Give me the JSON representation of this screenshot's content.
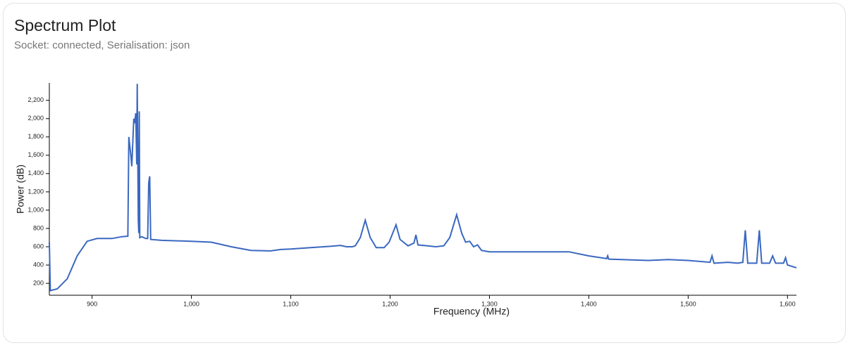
{
  "header": {
    "title": "Spectrum Plot",
    "subtitle": "Socket: connected, Serialisation: json"
  },
  "chart_data": {
    "type": "line",
    "x_label": "Frequency (MHz)",
    "y_label": "Power (dB)",
    "xlim": [
      857,
      1609
    ],
    "ylim": [
      70,
      2390
    ],
    "xticks": [
      900,
      {
        "value": 1000,
        "label": "1,000"
      },
      {
        "value": 1100,
        "label": "1,100"
      },
      {
        "value": 1200,
        "label": "1,200"
      },
      {
        "value": 1300,
        "label": "1,300"
      },
      {
        "value": 1400,
        "label": "1,400"
      },
      {
        "value": 1500,
        "label": "1,500"
      },
      {
        "value": 1600,
        "label": "1,600"
      }
    ],
    "yticks": [
      200,
      400,
      600,
      800,
      {
        "value": 1000,
        "label": "1,000"
      },
      {
        "value": 1200,
        "label": "1,200"
      },
      {
        "value": 1400,
        "label": "1,400"
      },
      {
        "value": 1600,
        "label": "1,600"
      },
      {
        "value": 1800,
        "label": "1,800"
      },
      {
        "value": 2000,
        "label": "2,000"
      },
      {
        "value": 2200,
        "label": "2,200"
      }
    ],
    "grid": false,
    "series": [
      {
        "name": "Power",
        "color": "#3a68c0",
        "x": [
          857,
          858,
          865,
          875,
          885,
          895,
          905,
          920,
          930,
          936,
          937,
          939,
          940,
          942,
          943,
          944,
          945,
          945.5,
          946.5,
          947,
          947.5,
          948,
          950,
          954,
          956,
          957,
          958,
          959,
          970,
          1000,
          1020,
          1040,
          1060,
          1080,
          1090,
          1100,
          1120,
          1140,
          1150,
          1156,
          1162,
          1165,
          1170,
          1175,
          1180,
          1186,
          1194,
          1199,
          1206,
          1210,
          1218,
          1224,
          1226,
          1228,
          1238,
          1246,
          1254,
          1260,
          1267,
          1272,
          1276,
          1280,
          1284,
          1288,
          1292,
          1300,
          1350,
          1380,
          1400,
          1418,
          1419,
          1420,
          1460,
          1480,
          1500,
          1522,
          1524,
          1526,
          1540,
          1550,
          1555,
          1557.5,
          1560,
          1569,
          1571.6,
          1574,
          1582,
          1585,
          1588,
          1596,
          1598,
          1600,
          1609
        ],
        "values": [
          650,
          120,
          140,
          250,
          500,
          660,
          690,
          690,
          710,
          715,
          1800,
          1600,
          1480,
          2000,
          1950,
          2060,
          1500,
          2380,
          900,
          750,
          2080,
          700,
          710,
          690,
          690,
          1300,
          1370,
          680,
          670,
          660,
          650,
          600,
          560,
          555,
          570,
          575,
          590,
          605,
          615,
          600,
          600,
          610,
          700,
          890,
          700,
          590,
          590,
          650,
          840,
          680,
          610,
          640,
          730,
          620,
          610,
          600,
          610,
          700,
          950,
          750,
          650,
          660,
          600,
          620,
          560,
          545,
          545,
          545,
          500,
          470,
          500,
          465,
          450,
          460,
          450,
          430,
          500,
          420,
          430,
          420,
          430,
          780,
          420,
          420,
          780,
          420,
          420,
          500,
          420,
          420,
          480,
          400,
          370
        ]
      }
    ]
  }
}
